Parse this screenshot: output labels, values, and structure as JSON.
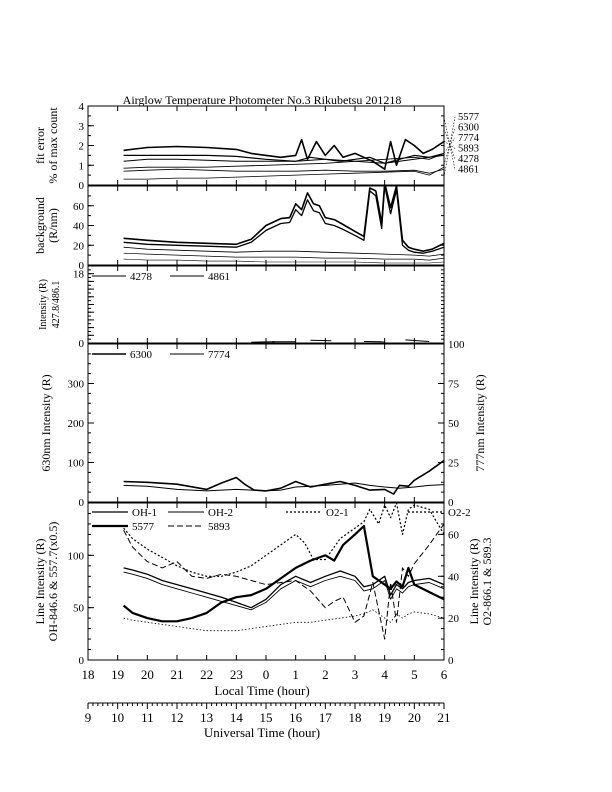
{
  "title": "Airglow Temperature Photometer No.3  Rikubetsu    201218",
  "x_axis": {
    "local": {
      "label": "Local Time (hour)",
      "range": [
        18,
        30
      ],
      "tick_labels": [
        "18",
        "19",
        "20",
        "21",
        "22",
        "23",
        "0",
        "1",
        "2",
        "3",
        "4",
        "5",
        "6"
      ]
    },
    "universal": {
      "label": "Universal Time (hour)",
      "range": [
        9,
        21
      ],
      "tick_labels": [
        "9",
        "10",
        "11",
        "12",
        "13",
        "14",
        "15",
        "16",
        "17",
        "18",
        "19",
        "20",
        "21"
      ]
    }
  },
  "chart_data": [
    {
      "type": "line",
      "panel": "fit-error",
      "ylabel": "fit error\n% of max count",
      "ylim": [
        0,
        4
      ],
      "yticks": [
        "0",
        "1",
        "2",
        "3",
        "4"
      ],
      "right_labels": [
        "5577",
        "6300",
        "7774",
        "5893",
        "4278",
        "4861"
      ],
      "series": [
        {
          "name": "5577",
          "x": [
            19.2,
            20,
            21,
            22,
            23,
            23.5,
            24,
            24.5,
            25,
            25.2,
            25.4,
            25.7,
            26,
            26.3,
            26.6,
            27,
            27.3,
            27.6,
            28,
            28.2,
            28.4,
            28.7,
            29,
            29.3,
            29.6,
            30
          ],
          "y": [
            1.75,
            1.9,
            1.95,
            1.9,
            1.8,
            1.6,
            1.5,
            1.4,
            1.5,
            2.3,
            1.3,
            2.2,
            1.5,
            2.0,
            1.4,
            1.6,
            1.4,
            1.2,
            0.8,
            2.2,
            1.0,
            2.3,
            2.0,
            1.6,
            1.8,
            2.2
          ]
        },
        {
          "name": "6300",
          "x": [
            19.2,
            20,
            21,
            22,
            23,
            24,
            25,
            25.5,
            26,
            26.5,
            27,
            27.5,
            28,
            28.5,
            29,
            29.5,
            30
          ],
          "y": [
            1.5,
            1.5,
            1.5,
            1.5,
            1.45,
            1.3,
            1.2,
            1.4,
            1.3,
            1.2,
            1.3,
            1.4,
            1.1,
            1.3,
            1.5,
            1.4,
            1.6
          ]
        },
        {
          "name": "7774",
          "x": [
            19.2,
            20,
            21,
            22,
            23,
            24,
            25,
            26,
            27,
            28,
            28.5,
            29,
            29.5,
            30
          ],
          "y": [
            1.2,
            1.3,
            1.3,
            1.25,
            1.2,
            1.2,
            1.2,
            1.3,
            1.2,
            1.1,
            1.2,
            1.3,
            1.4,
            1.5
          ]
        },
        {
          "name": "5893",
          "x": [
            19.2,
            20,
            21,
            22,
            23,
            24,
            25,
            26,
            27,
            27.5,
            28,
            28.5,
            29,
            29.5,
            30
          ],
          "y": [
            0.85,
            0.9,
            0.9,
            0.9,
            0.95,
            1.0,
            1.05,
            1.1,
            1.2,
            1.25,
            1.3,
            1.35,
            1.4,
            1.3,
            1.6
          ]
        },
        {
          "name": "4278",
          "x": [
            19.2,
            20,
            21,
            22,
            23,
            24,
            25,
            26,
            27,
            28,
            29,
            29.5,
            30
          ],
          "y": [
            0.7,
            0.75,
            0.8,
            0.75,
            0.7,
            0.7,
            0.7,
            0.75,
            0.7,
            0.7,
            0.75,
            0.6,
            0.8
          ]
        },
        {
          "name": "4861",
          "x": [
            19.2,
            20,
            21,
            22,
            23,
            24,
            25,
            26,
            27,
            28,
            29,
            29.5,
            30
          ],
          "y": [
            0.3,
            0.3,
            0.35,
            0.35,
            0.4,
            0.45,
            0.5,
            0.55,
            0.6,
            0.65,
            0.7,
            0.5,
            0.9
          ]
        }
      ]
    },
    {
      "type": "line",
      "panel": "background",
      "ylabel": "background\n(R/nm)",
      "ylim": [
        0,
        80
      ],
      "yticks": [
        "0",
        "20",
        "40",
        "60"
      ],
      "series": [
        {
          "x": [
            19.2,
            20,
            21,
            22,
            23,
            23.5,
            24,
            24.5,
            24.8,
            25,
            25.2,
            25.4,
            25.6,
            25.8,
            26,
            26.3,
            26.6,
            27,
            27.3,
            27.5,
            27.7,
            27.9,
            28,
            28.2,
            28.4,
            28.6,
            28.8,
            29,
            29.3,
            29.6,
            30
          ],
          "y": [
            27,
            25,
            23,
            22,
            21,
            26,
            40,
            47,
            48,
            62,
            56,
            73,
            62,
            60,
            48,
            46,
            41,
            34,
            29,
            78,
            75,
            42,
            83,
            58,
            80,
            25,
            18,
            16,
            14,
            16,
            22
          ]
        },
        {
          "x": [
            19.2,
            20,
            21,
            22,
            23,
            23.5,
            24,
            24.5,
            24.8,
            25,
            25.2,
            25.4,
            25.6,
            25.8,
            26,
            26.3,
            26.6,
            27,
            27.3,
            27.5,
            27.7,
            27.9,
            28,
            28.2,
            28.4,
            28.6,
            28.8,
            29,
            29.3,
            29.6,
            30
          ],
          "y": [
            23,
            21,
            20,
            19,
            18,
            23,
            35,
            42,
            43,
            56,
            50,
            66,
            55,
            53,
            42,
            40,
            36,
            30,
            25,
            75,
            70,
            37,
            80,
            52,
            76,
            20,
            15,
            13,
            12,
            14,
            18
          ]
        },
        {
          "x": [
            19.2,
            20,
            21,
            22,
            23,
            24,
            25,
            26,
            27,
            28,
            29,
            29.5,
            30
          ],
          "y": [
            18,
            16,
            15,
            14,
            13,
            14,
            14,
            13,
            12,
            11,
            10,
            9,
            11
          ]
        },
        {
          "x": [
            19.2,
            20,
            21,
            22,
            23,
            24,
            25,
            26,
            27,
            28,
            29,
            29.5,
            30
          ],
          "y": [
            12,
            11,
            10,
            9,
            8,
            8,
            8,
            7,
            7,
            6,
            6,
            5,
            7
          ]
        },
        {
          "x": [
            19.2,
            20,
            21,
            22,
            23,
            24,
            25,
            26,
            27,
            28,
            29,
            29.5,
            30
          ],
          "y": [
            6,
            5,
            5,
            4,
            4,
            3,
            3,
            3,
            3,
            2,
            2,
            2,
            3
          ]
        }
      ]
    },
    {
      "type": "line",
      "panel": "intensity-427-486",
      "ylabel": "Intensity (R)\n427.8/486.1",
      "ylim": [
        0,
        20
      ],
      "yticks": [
        "0",
        "",
        "",
        "",
        "",
        "",
        "",
        "",
        "",
        "18"
      ],
      "legend": [
        "4278",
        "4861"
      ],
      "series": [
        {
          "name": "4278",
          "x": [
            24.2,
            24.6,
            25.0
          ],
          "y": [
            0.3,
            0.35,
            0.3
          ]
        },
        {
          "name": "4278",
          "x": [
            25.5,
            26.2
          ],
          "y": [
            0.7,
            0.6
          ]
        },
        {
          "name": "4278",
          "x": [
            27.3,
            28.0
          ],
          "y": [
            0.4,
            0.3
          ]
        },
        {
          "name": "4861",
          "x": [
            23.5,
            24.3
          ],
          "y": [
            0.2,
            0.3
          ]
        },
        {
          "name": "4861",
          "x": [
            28.7,
            29.5
          ],
          "y": [
            0.8,
            0.4
          ]
        }
      ]
    },
    {
      "type": "line",
      "panel": "630-777",
      "ylabel": "630nm Intensity (R)",
      "ylim": [
        0,
        400
      ],
      "yticks": [
        "0",
        "100",
        "200",
        "300"
      ],
      "ylabel_right": "777nm Intensity (R)",
      "ylim_right": [
        0,
        100
      ],
      "yticks_right": [
        "0",
        "25",
        "50",
        "75",
        "100"
      ],
      "legend": [
        "6300",
        "7774"
      ],
      "series": [
        {
          "name": "6300",
          "x": [
            19.2,
            20,
            21,
            22,
            22.5,
            23,
            23.3,
            23.6,
            24,
            24.5,
            25,
            25.5,
            26,
            26.5,
            27,
            27.5,
            28,
            28.3,
            28.5,
            28.8,
            29,
            29.5,
            30
          ],
          "y": [
            52,
            50,
            45,
            32,
            48,
            62,
            44,
            30,
            28,
            35,
            52,
            38,
            45,
            52,
            42,
            30,
            32,
            20,
            42,
            40,
            55,
            78,
            105
          ]
        },
        {
          "name": "7774",
          "x": [
            19.2,
            20,
            21,
            22,
            22.5,
            23,
            23.5,
            24,
            24.5,
            25,
            25.5,
            26,
            26.5,
            27,
            27.5,
            28,
            28.5,
            29,
            29.5,
            30
          ],
          "y": [
            42,
            40,
            32,
            28,
            30,
            32,
            30,
            28,
            30,
            38,
            40,
            42,
            45,
            48,
            42,
            38,
            35,
            38,
            42,
            44
          ]
        }
      ]
    },
    {
      "type": "line",
      "panel": "line-intensity",
      "ylabel": "Line Intensity (R)\nOH-846.6 & 557.7(x0.5)",
      "ylim": [
        0,
        150
      ],
      "yticks": [
        "0",
        "50",
        "100"
      ],
      "ylabel_right": "Line Intensity (R)\nO2-866.1 & 589.3",
      "ylim_right": [
        0,
        75
      ],
      "yticks_right": [
        "0",
        "20",
        "40",
        "60"
      ],
      "legend": [
        "OH-1",
        "OH-2",
        "O2-1",
        "O2-2",
        "5577",
        "5893"
      ],
      "series": [
        {
          "name": "OH-1",
          "x": [
            19.2,
            19.5,
            20,
            20.5,
            21,
            21.5,
            22,
            22.5,
            23,
            23.5,
            24,
            24.5,
            25,
            25.5,
            26,
            26.5,
            27,
            27.3,
            27.6,
            28,
            28.2,
            28.4,
            28.6,
            28.8,
            29,
            29.5,
            30
          ],
          "y": [
            88,
            86,
            82,
            76,
            72,
            68,
            64,
            60,
            55,
            50,
            58,
            72,
            80,
            74,
            80,
            85,
            80,
            70,
            72,
            80,
            62,
            72,
            68,
            74,
            76,
            78,
            72
          ]
        },
        {
          "name": "OH-2",
          "x": [
            19.2,
            19.5,
            20,
            20.5,
            21,
            21.5,
            22,
            22.5,
            23,
            23.5,
            24,
            24.5,
            25,
            25.5,
            26,
            26.5,
            27,
            27.3,
            27.6,
            28,
            28.2,
            28.4,
            28.6,
            28.8,
            29,
            29.5,
            30
          ],
          "y": [
            84,
            82,
            78,
            72,
            68,
            64,
            60,
            56,
            52,
            48,
            55,
            68,
            76,
            70,
            76,
            80,
            76,
            66,
            68,
            76,
            58,
            68,
            64,
            70,
            72,
            74,
            68
          ]
        },
        {
          "name": "O2-1",
          "x": [
            19.2,
            19.5,
            20,
            20.5,
            21,
            21.5,
            22,
            22.5,
            23,
            23.5,
            24,
            24.5,
            25,
            25.3,
            25.6,
            26,
            26.5,
            27,
            27.3,
            27.5,
            27.8,
            28,
            28.2,
            28.4,
            28.6,
            28.8,
            29,
            29.5,
            30
          ],
          "y": [
            63,
            58,
            53,
            49,
            45,
            42,
            40,
            40,
            42,
            45,
            50,
            55,
            60,
            56,
            48,
            48,
            58,
            63,
            66,
            72,
            65,
            74,
            68,
            75,
            60,
            72,
            74,
            72,
            60
          ]
        },
        {
          "name": "O2-2",
          "x": [
            19.2,
            19.5,
            20,
            20.5,
            21,
            21.5,
            22,
            22.5,
            23,
            23.5,
            24,
            24.5,
            25,
            25.5,
            26,
            26.5,
            27,
            27.3,
            27.6,
            28,
            28.2,
            28.4,
            28.6,
            28.8,
            29,
            29.5,
            30
          ],
          "y": [
            20,
            19,
            18,
            17,
            16,
            15,
            14,
            14,
            14,
            15,
            16,
            17,
            18,
            18,
            19,
            20,
            21,
            22,
            24,
            20,
            18,
            22,
            20,
            22,
            23,
            22,
            20
          ]
        },
        {
          "name": "5577",
          "x": [
            19.2,
            19.5,
            20,
            20.5,
            21,
            21.5,
            22,
            22.5,
            23,
            23.5,
            24,
            24.5,
            25,
            25.5,
            26,
            26.3,
            26.6,
            27,
            27.3,
            27.6,
            28,
            28.2,
            28.4,
            28.6,
            28.8,
            29,
            29.5,
            30
          ],
          "y": [
            52,
            45,
            40,
            37,
            37,
            40,
            45,
            55,
            60,
            62,
            68,
            78,
            88,
            95,
            100,
            95,
            110,
            120,
            128,
            80,
            72,
            68,
            75,
            70,
            88,
            72,
            65,
            58
          ]
        },
        {
          "name": "5893",
          "x": [
            19.2,
            19.5,
            20,
            20.5,
            21,
            21.5,
            22,
            22.5,
            23,
            23.5,
            24,
            24.5,
            25,
            25.5,
            26,
            26.3,
            26.6,
            27,
            27.3,
            27.6,
            28,
            28.2,
            28.4,
            28.6,
            28.8,
            29,
            29.5,
            30
          ],
          "y": [
            62,
            54,
            47,
            44,
            47,
            40,
            39,
            41,
            40,
            38,
            36,
            37,
            38,
            33,
            25,
            28,
            30,
            18,
            21,
            37,
            10,
            37,
            18,
            44,
            40,
            46,
            55,
            65
          ]
        }
      ]
    }
  ]
}
